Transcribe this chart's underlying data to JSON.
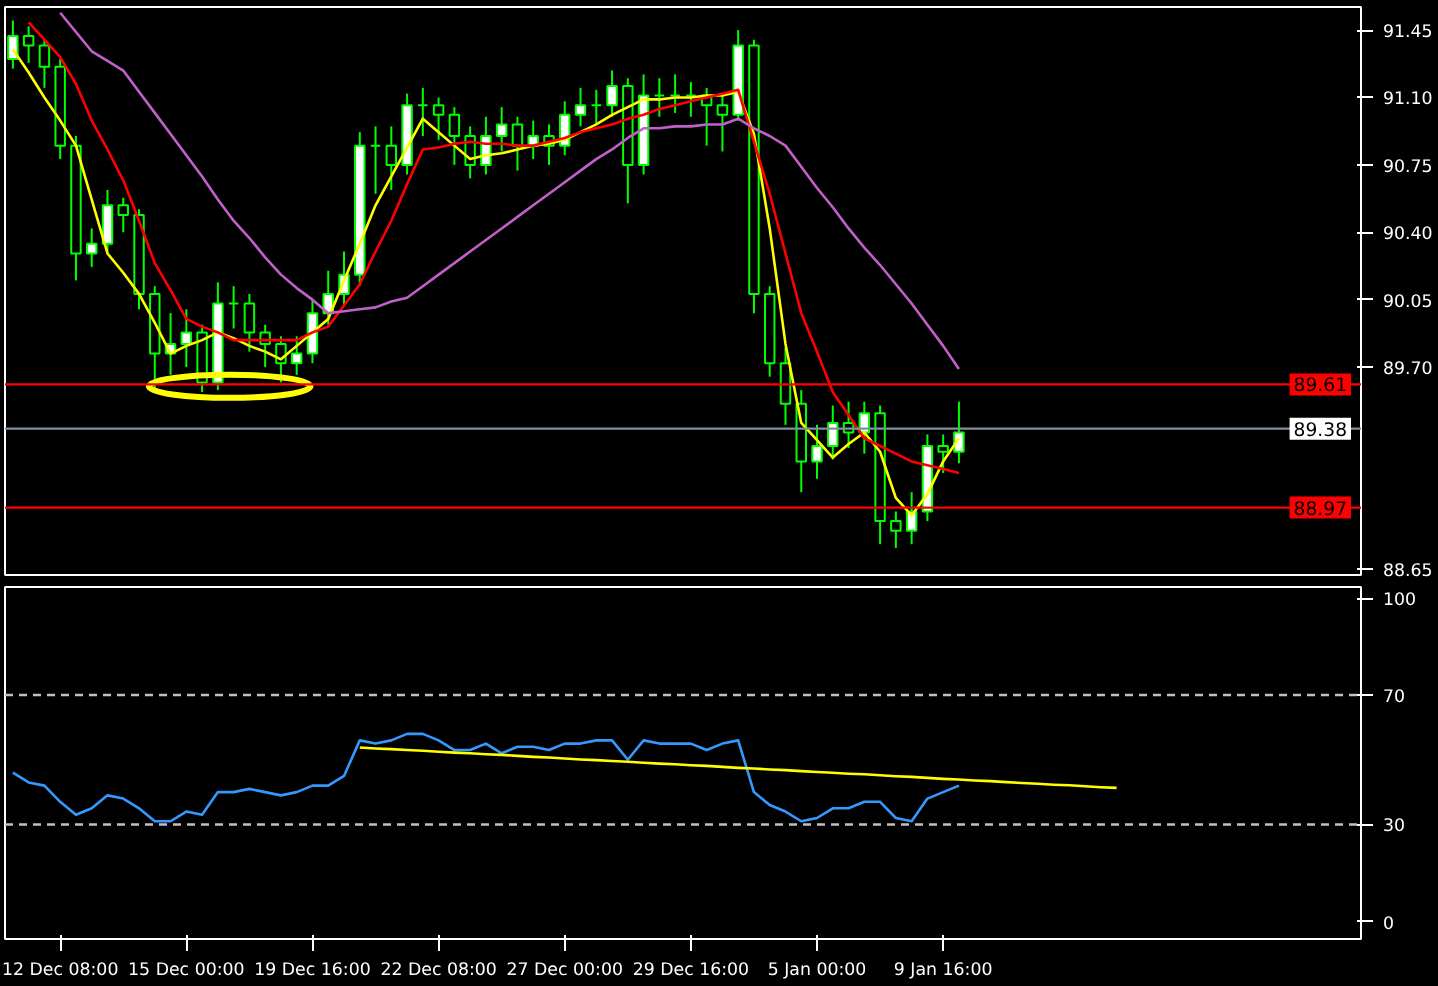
{
  "chart_data": [
    {
      "type": "candlestick",
      "color": "#00ff00",
      "categories": [
        null,
        null,
        null,
        null,
        null,
        null,
        null,
        null,
        null,
        null,
        null,
        null,
        null,
        null,
        null,
        null,
        null,
        null,
        null,
        null,
        null,
        null,
        null,
        null,
        null,
        null,
        null,
        null,
        null,
        null,
        null,
        null,
        null,
        null,
        null,
        null,
        null,
        null,
        null,
        null,
        null,
        null,
        null,
        null,
        null,
        null,
        null,
        null,
        null,
        null,
        null,
        null,
        null,
        null,
        null,
        null,
        null,
        null,
        null,
        null,
        null,
        null,
        null,
        null,
        null,
        null,
        null,
        null,
        null,
        null,
        null,
        null,
        null,
        null,
        null,
        null,
        null,
        null,
        null,
        null,
        null,
        null,
        null,
        null,
        null,
        null
      ],
      "ohlc": [
        [
          91.3,
          91.5,
          91.25,
          91.42
        ],
        [
          91.42,
          91.47,
          91.28,
          91.37
        ],
        [
          91.37,
          91.4,
          91.15,
          91.26
        ],
        [
          91.26,
          91.3,
          90.78,
          90.85
        ],
        [
          90.85,
          90.9,
          90.15,
          90.29
        ],
        [
          90.29,
          90.42,
          90.22,
          90.34
        ],
        [
          90.34,
          90.62,
          90.3,
          90.54
        ],
        [
          90.54,
          90.58,
          90.4,
          90.49
        ],
        [
          90.49,
          90.52,
          90.0,
          90.08
        ],
        [
          90.08,
          90.12,
          89.58,
          89.77
        ],
        [
          89.77,
          89.98,
          89.66,
          89.82
        ],
        [
          89.82,
          90.0,
          89.7,
          89.88
        ],
        [
          89.88,
          89.92,
          89.57,
          89.62
        ],
        [
          89.62,
          90.14,
          89.58,
          90.03
        ],
        [
          90.03,
          90.12,
          89.9,
          90.03
        ],
        [
          90.03,
          90.08,
          89.78,
          89.88
        ],
        [
          89.88,
          89.92,
          89.7,
          89.82
        ],
        [
          89.82,
          89.86,
          89.62,
          89.72
        ],
        [
          89.72,
          89.86,
          89.66,
          89.77
        ],
        [
          89.77,
          90.05,
          89.72,
          89.98
        ],
        [
          89.98,
          90.2,
          89.92,
          90.08
        ],
        [
          90.08,
          90.3,
          90.02,
          90.18
        ],
        [
          90.18,
          90.92,
          90.12,
          90.85
        ],
        [
          90.85,
          90.95,
          90.6,
          90.85
        ],
        [
          90.85,
          90.95,
          90.62,
          90.75
        ],
        [
          90.75,
          91.12,
          90.7,
          91.06
        ],
        [
          91.06,
          91.15,
          90.9,
          91.06
        ],
        [
          91.06,
          91.1,
          90.88,
          91.01
        ],
        [
          91.01,
          91.05,
          90.75,
          90.9
        ],
        [
          90.9,
          90.95,
          90.68,
          90.75
        ],
        [
          90.75,
          91.0,
          90.7,
          90.9
        ],
        [
          90.9,
          91.05,
          90.82,
          90.96
        ],
        [
          90.96,
          91.0,
          90.72,
          90.85
        ],
        [
          90.85,
          90.98,
          90.78,
          90.9
        ],
        [
          90.9,
          90.96,
          90.75,
          90.85
        ],
        [
          90.85,
          91.08,
          90.8,
          91.01
        ],
        [
          91.01,
          91.15,
          90.95,
          91.06
        ],
        [
          91.06,
          91.14,
          90.96,
          91.06
        ],
        [
          91.06,
          91.24,
          91.0,
          91.16
        ],
        [
          91.16,
          91.2,
          90.55,
          90.75
        ],
        [
          90.75,
          91.22,
          90.7,
          91.11
        ],
        [
          91.11,
          91.2,
          91.0,
          91.11
        ],
        [
          91.11,
          91.22,
          91.02,
          91.11
        ],
        [
          91.11,
          91.18,
          91.0,
          91.11
        ],
        [
          91.11,
          91.15,
          90.85,
          91.06
        ],
        [
          91.06,
          91.12,
          90.82,
          91.01
        ],
        [
          91.01,
          91.45,
          90.98,
          91.37
        ],
        [
          91.37,
          91.4,
          89.98,
          90.08
        ],
        [
          90.08,
          90.12,
          89.65,
          89.72
        ],
        [
          89.72,
          89.8,
          89.4,
          89.51
        ],
        [
          89.51,
          89.58,
          89.05,
          89.21
        ],
        [
          89.21,
          89.4,
          89.12,
          89.29
        ],
        [
          89.29,
          89.5,
          89.22,
          89.41
        ],
        [
          89.41,
          89.52,
          89.28,
          89.36
        ],
        [
          89.36,
          89.52,
          89.25,
          89.46
        ],
        [
          89.46,
          89.5,
          88.78,
          88.9
        ],
        [
          88.9,
          88.95,
          88.76,
          88.85
        ],
        [
          88.85,
          89.05,
          88.78,
          88.95
        ],
        [
          88.95,
          89.35,
          88.9,
          89.29
        ],
        [
          89.29,
          89.35,
          89.15,
          89.26
        ],
        [
          89.26,
          89.52,
          89.2,
          89.36
        ],
        null,
        null,
        null,
        null,
        null,
        null,
        null,
        null,
        null,
        null,
        null,
        null,
        null,
        null,
        null,
        null,
        null,
        null,
        null,
        null,
        null,
        null,
        null,
        null,
        null
      ],
      "series": [
        {
          "type": "line",
          "color": "#ffff00",
          "values": [
            91.35,
            91.23,
            91.1,
            90.98,
            90.85,
            90.57,
            90.29,
            90.19,
            90.08,
            89.93,
            89.77,
            89.81,
            89.84,
            89.88,
            89.85,
            89.81,
            89.78,
            89.74,
            89.81,
            89.88,
            89.95,
            90.15,
            90.34,
            90.54,
            90.69,
            90.84,
            90.99,
            90.92,
            90.85,
            90.78,
            90.8,
            90.81,
            90.83,
            90.85,
            90.86,
            90.88,
            90.92,
            90.96,
            91.01,
            91.05,
            91.09,
            91.09,
            91.1,
            91.1,
            91.11,
            91.11,
            91.13,
            90.91,
            90.42,
            89.82,
            89.41,
            89.32,
            89.23,
            89.3,
            89.36,
            89.26,
            89.02,
            88.93,
            89.04,
            89.21,
            89.33,
            null,
            null,
            null,
            null,
            null,
            null,
            null,
            null,
            null,
            null,
            null,
            null,
            null,
            null,
            null,
            null,
            null,
            null,
            null,
            null,
            null,
            null,
            null,
            null,
            null
          ]
        },
        {
          "type": "line",
          "color": "#ff0000",
          "values": [
            null,
            91.49,
            91.4,
            91.31,
            91.17,
            90.98,
            90.83,
            90.67,
            90.46,
            90.24,
            90.1,
            89.95,
            89.91,
            89.88,
            89.84,
            89.84,
            89.84,
            89.84,
            89.84,
            89.88,
            89.91,
            90.02,
            90.13,
            90.3,
            90.46,
            90.65,
            90.83,
            90.84,
            90.86,
            90.87,
            90.86,
            90.86,
            90.85,
            90.85,
            90.87,
            90.89,
            90.92,
            90.94,
            90.96,
            90.99,
            91.01,
            91.04,
            91.06,
            91.08,
            91.1,
            91.12,
            91.14,
            90.87,
            90.6,
            90.29,
            89.98,
            89.78,
            89.57,
            89.45,
            89.33,
            89.29,
            89.25,
            89.21,
            89.19,
            89.17,
            89.15,
            null,
            null,
            null,
            null,
            null,
            null,
            null,
            null,
            null,
            null,
            null,
            null,
            null,
            null,
            null,
            null,
            null,
            null,
            null,
            null,
            null,
            null,
            null,
            null,
            null
          ]
        },
        {
          "type": "line",
          "color": "#c060c8",
          "values": [
            null,
            null,
            null,
            91.54,
            91.44,
            91.34,
            91.29,
            91.24,
            91.13,
            91.02,
            90.91,
            90.8,
            90.69,
            90.57,
            90.46,
            90.37,
            90.27,
            90.18,
            90.11,
            90.05,
            89.98,
            89.99,
            90.0,
            90.01,
            90.04,
            90.06,
            90.12,
            90.18,
            90.24,
            90.3,
            90.36,
            90.42,
            90.48,
            90.54,
            90.6,
            90.66,
            90.72,
            90.78,
            90.83,
            90.89,
            90.94,
            90.94,
            90.95,
            90.95,
            90.96,
            90.96,
            90.99,
            90.94,
            90.9,
            90.85,
            90.74,
            90.63,
            90.53,
            90.42,
            90.32,
            90.23,
            90.13,
            90.03,
            89.92,
            89.81,
            89.69,
            null,
            null,
            null,
            null,
            null,
            null,
            null,
            null,
            null,
            null,
            null,
            null,
            null,
            null,
            null,
            null,
            null,
            null,
            null,
            null,
            null,
            null,
            null,
            null,
            null
          ]
        }
      ],
      "ylim": [
        88.62,
        91.57
      ],
      "yticks": [
        91.45,
        {
          "value": 91.1,
          "label": "91.10"
        },
        90.75,
        {
          "value": 90.4,
          "label": "90.40"
        },
        90.05,
        {
          "value": 89.7,
          "label": "89.70"
        },
        88.65
      ],
      "grid": false,
      "ref_lines": [
        {
          "axis": "y",
          "value": 89.61,
          "label": "89.61",
          "color": "#ff0000"
        },
        {
          "axis": "y",
          "value": 89.38,
          "label": "89.38",
          "color": "#8090a0"
        },
        {
          "axis": "y",
          "value": 88.97,
          "label": "88.97",
          "color": "#ff0000"
        }
      ]
    },
    {
      "type": "line",
      "categories": [
        null,
        null,
        null,
        "12 Dec 08:00",
        null,
        null,
        null,
        null,
        null,
        null,
        null,
        "15 Dec 00:00",
        null,
        null,
        null,
        null,
        null,
        null,
        null,
        "19 Dec 16:00",
        null,
        null,
        null,
        null,
        null,
        null,
        null,
        "22 Dec 08:00",
        null,
        null,
        null,
        null,
        null,
        null,
        null,
        "27 Dec 00:00",
        null,
        null,
        null,
        null,
        null,
        null,
        null,
        "29 Dec 16:00",
        null,
        null,
        null,
        null,
        null,
        null,
        null,
        "5 Jan 00:00",
        null,
        null,
        null,
        null,
        null,
        null,
        null,
        "9 Jan 16:00",
        null,
        null,
        null,
        null,
        null,
        null,
        null,
        null,
        null,
        null,
        null,
        null,
        null,
        null,
        null,
        null,
        null,
        null,
        null,
        null,
        null,
        null,
        null,
        null,
        null,
        null
      ],
      "series": [
        {
          "color": "#3399ff",
          "values": [
            46,
            43,
            42,
            37,
            33,
            35,
            39,
            38,
            35,
            31,
            31,
            34,
            33,
            40,
            40,
            41,
            40,
            39,
            40,
            42,
            42,
            45,
            56,
            55,
            56,
            58,
            58,
            56,
            53,
            53,
            55,
            52,
            54,
            54,
            53,
            55,
            55,
            56,
            56,
            50,
            56,
            55,
            55,
            55,
            53,
            55,
            56,
            40,
            36,
            34,
            31,
            32,
            35,
            35,
            37,
            37,
            32,
            31,
            38,
            40,
            42,
            null,
            null,
            null,
            null,
            null,
            null,
            null,
            null,
            null,
            null,
            null,
            null,
            null,
            null,
            null,
            null,
            null,
            null,
            null,
            null,
            null,
            null,
            null,
            null,
            null
          ]
        },
        {
          "color": "#ffff00",
          "values": [
            null,
            null,
            null,
            null,
            null,
            null,
            null,
            null,
            null,
            null,
            null,
            null,
            null,
            null,
            null,
            null,
            null,
            null,
            null,
            null,
            null,
            null,
            53.8,
            53.5,
            53.3,
            53.0,
            52.8,
            52.5,
            52.2,
            52.0,
            51.7,
            51.5,
            51.2,
            50.9,
            50.7,
            50.4,
            50.1,
            49.9,
            49.6,
            49.4,
            49.1,
            48.8,
            48.6,
            48.3,
            48.1,
            47.8,
            47.5,
            47.3,
            47.0,
            46.8,
            46.5,
            46.2,
            46.0,
            45.7,
            45.5,
            45.2,
            44.9,
            44.7,
            44.4,
            44.1,
            43.9,
            43.6,
            43.4,
            43.1,
            42.8,
            42.6,
            42.3,
            42.1,
            41.8,
            41.5,
            41.3,
            null,
            null,
            null,
            null,
            null,
            null,
            null,
            null,
            null,
            null,
            null,
            null,
            null,
            null,
            null
          ]
        }
      ],
      "ylim": [
        -5.4,
        103.4
      ],
      "yticks": [
        0,
        30,
        70,
        100
      ],
      "grid": false,
      "ref_lines": [
        {
          "axis": "y",
          "value": 70,
          "color": "#c0c0c0",
          "line_style": "dashed"
        },
        {
          "axis": "y",
          "value": 30,
          "color": "#c0c0c0",
          "line_style": "dashed"
        }
      ]
    }
  ]
}
